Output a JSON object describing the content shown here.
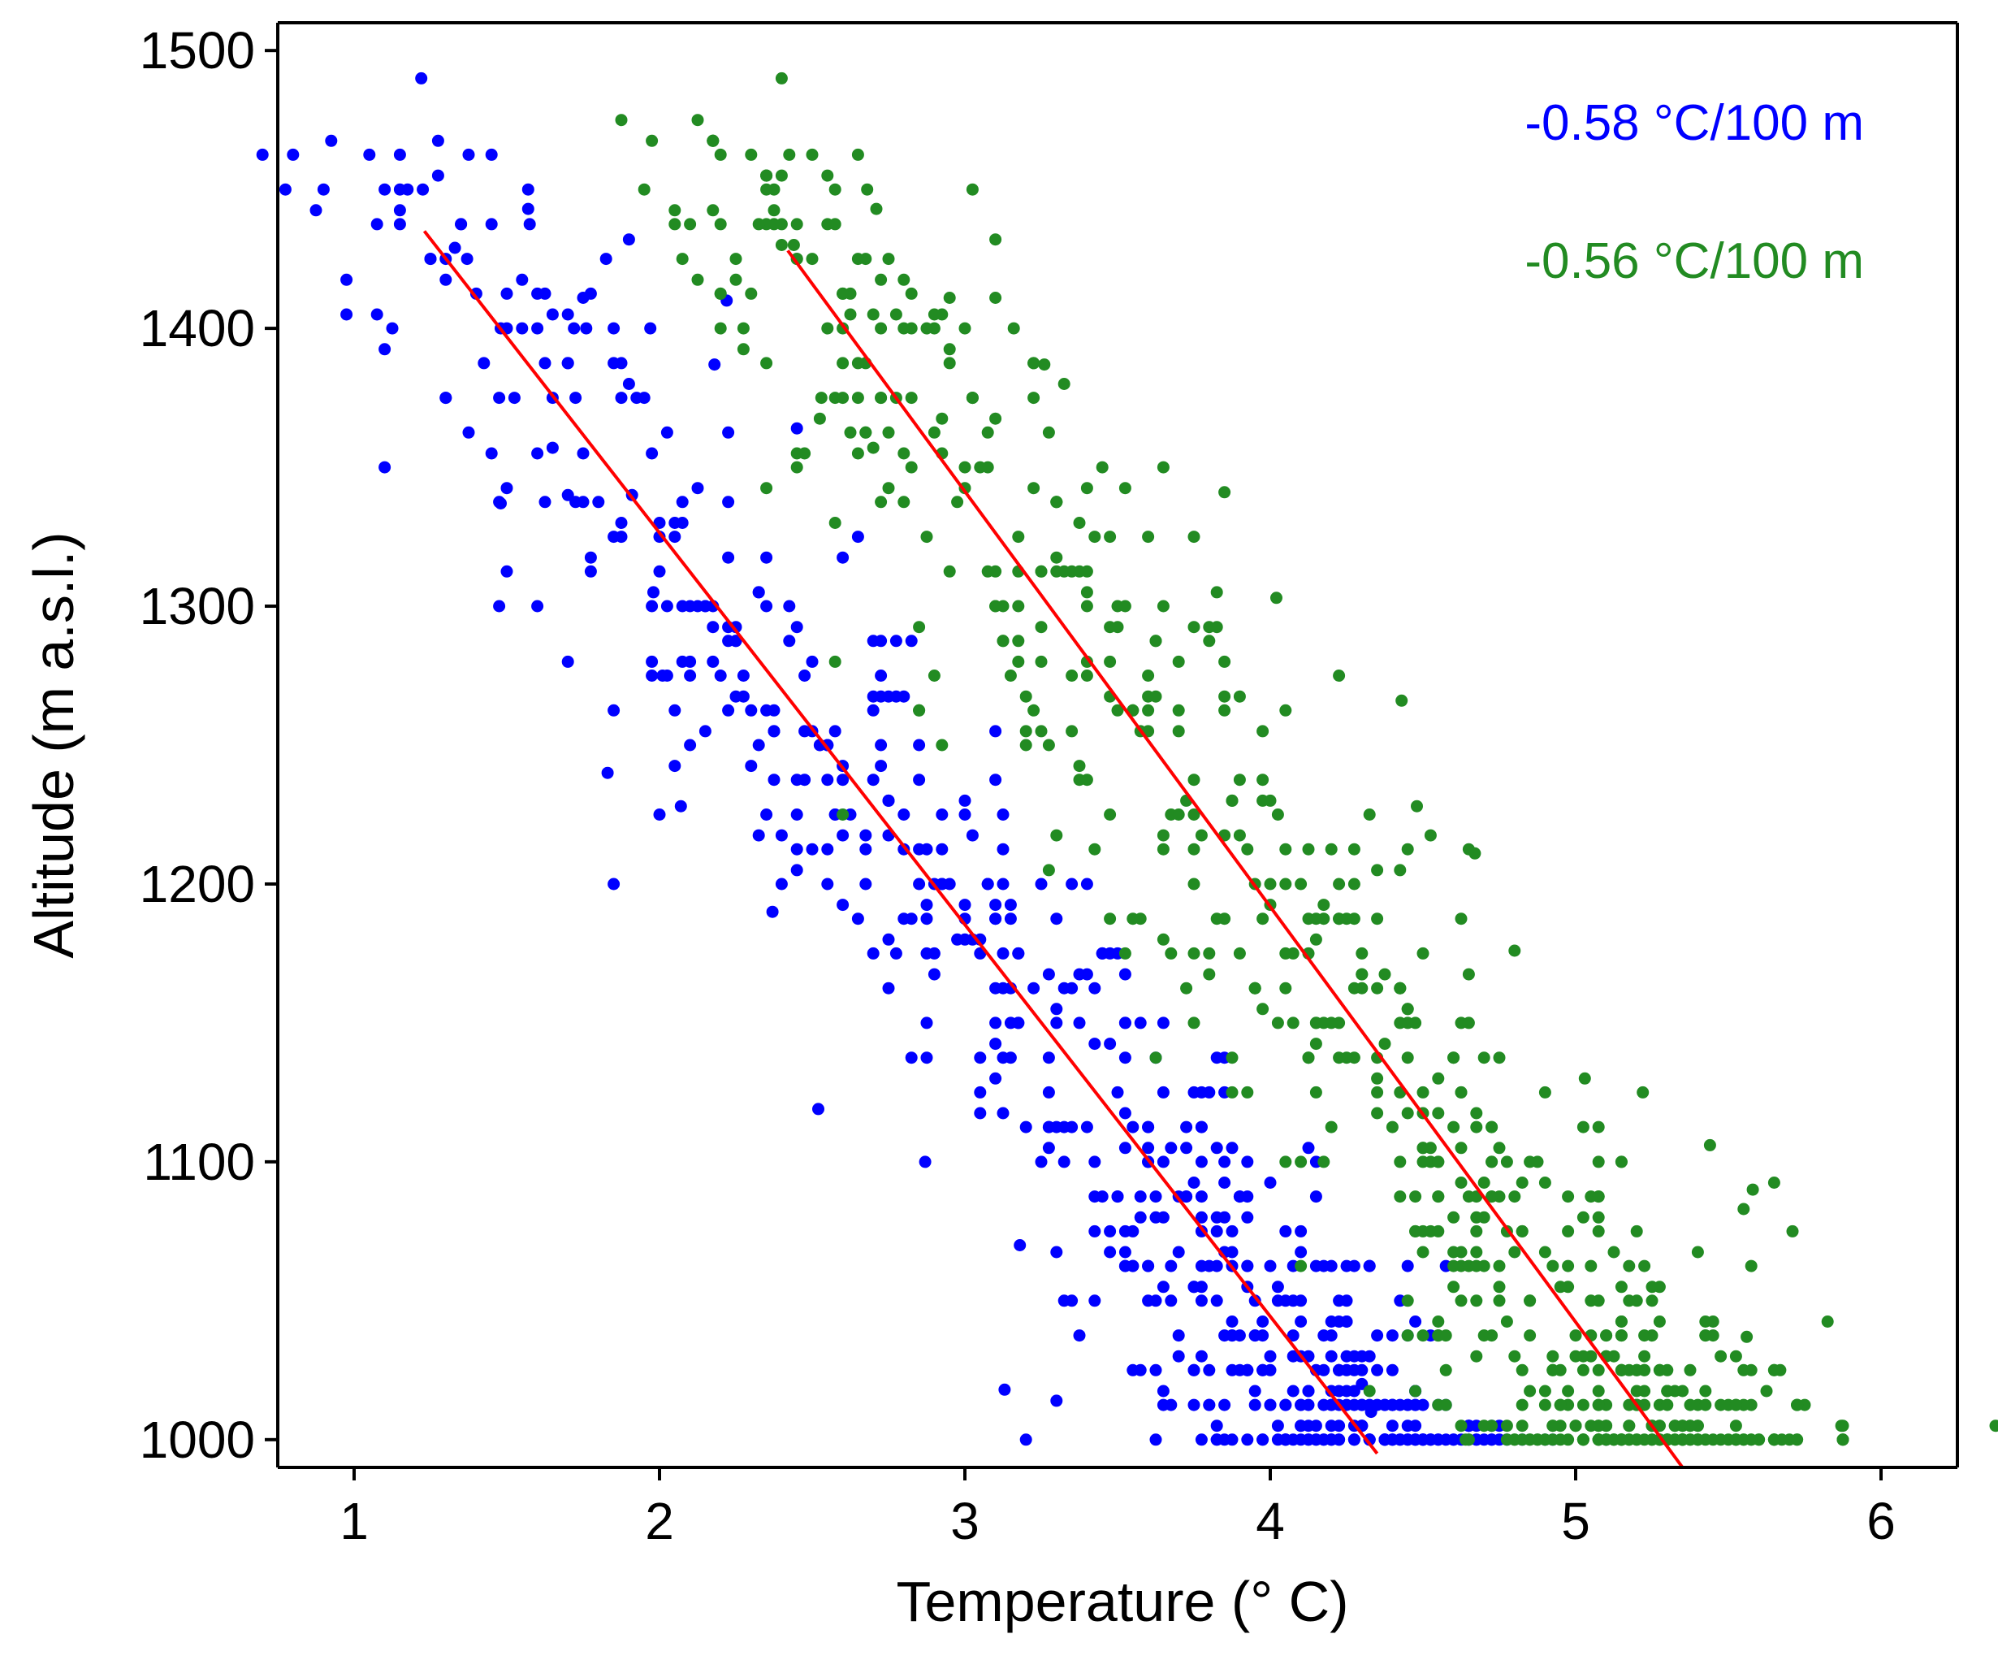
{
  "chart_data": {
    "type": "scatter",
    "title": "",
    "xlabel": "Temperature (° C)",
    "ylabel": "Altitude (m a.s.l.)",
    "xlim": [
      0.75,
      6.25
    ],
    "ylim": [
      990,
      1510
    ],
    "x_ticks": [
      1,
      2,
      3,
      4,
      5,
      6
    ],
    "x_tick_labels": [
      "1",
      "2",
      "3",
      "4",
      "5",
      "6"
    ],
    "y_ticks": [
      1000,
      1100,
      1200,
      1300,
      1400,
      1500
    ],
    "y_tick_labels": [
      "1000",
      "1100",
      "1200",
      "1300",
      "1400",
      "1500"
    ],
    "grid": false,
    "legend": "none",
    "series": [
      {
        "name": "blue",
        "color": "#0000ff",
        "annotation": "-0.58 °C/100 m",
        "trend": {
          "x": [
            1.23,
            4.35
          ],
          "y": [
            1435,
            995
          ]
        },
        "n_points": 650,
        "point_spread": {
          "temp_sd": 0.28,
          "alt_range": [
            1000,
            1490
          ]
        },
        "points": [
          [
            1.22,
            1490
          ],
          [
            1.57,
            1450
          ],
          [
            1.57,
            1443
          ],
          [
            1.25,
            1425
          ],
          [
            1.33,
            1429
          ],
          [
            1.37,
            1425
          ],
          [
            1.3,
            1375
          ],
          [
            1.48,
            1400
          ],
          [
            1.6,
            1400
          ],
          [
            1.75,
            1411
          ],
          [
            1.72,
            1400
          ],
          [
            1.76,
            1400
          ],
          [
            1.9,
            1432
          ],
          [
            1.97,
            1400
          ],
          [
            1.48,
            1337
          ],
          [
            1.65,
            1357
          ],
          [
            1.7,
            1340
          ],
          [
            1.85,
            1325
          ],
          [
            1.91,
            1340
          ],
          [
            1.98,
            1305
          ],
          [
            2.01,
            1275
          ],
          [
            1.83,
            1240
          ],
          [
            2.07,
            1228
          ],
          [
            2.22,
            1410
          ],
          [
            2.18,
            1387
          ],
          [
            2.45,
            1364
          ],
          [
            2.37,
            1190
          ],
          [
            2.52,
            1119
          ],
          [
            2.87,
            1100
          ],
          [
            3.18,
            1070
          ],
          [
            3.2,
            1000
          ],
          [
            4.33,
            1010
          ],
          [
            4.5,
            1000
          ],
          [
            4.3,
            1020
          ],
          [
            3.13,
            1018
          ],
          [
            3.3,
            1014
          ]
        ]
      },
      {
        "name": "green",
        "color": "#228b22",
        "annotation": "-0.56 °C/100 m",
        "trend": {
          "x": [
            2.42,
            5.35
          ],
          "y": [
            1428,
            990
          ]
        },
        "n_points": 700,
        "point_spread": {
          "temp_sd": 0.3,
          "alt_range": [
            1000,
            1490
          ]
        },
        "points": [
          [
            2.4,
            1490
          ],
          [
            2.68,
            1450
          ],
          [
            2.71,
            1443
          ],
          [
            2.44,
            1430
          ],
          [
            3.1,
            1432
          ],
          [
            2.6,
            1400
          ],
          [
            2.8,
            1400
          ],
          [
            2.9,
            1400
          ],
          [
            2.95,
            1411
          ],
          [
            3.1,
            1411
          ],
          [
            3.16,
            1400
          ],
          [
            2.53,
            1375
          ],
          [
            2.7,
            1357
          ],
          [
            3.26,
            1387
          ],
          [
            3.85,
            1341
          ],
          [
            4.02,
            1303
          ],
          [
            4.43,
            1266
          ],
          [
            4.67,
            1211
          ],
          [
            4.48,
            1228
          ],
          [
            4.8,
            1176
          ],
          [
            5.44,
            1106
          ],
          [
            5.58,
            1090
          ],
          [
            5.55,
            1083
          ],
          [
            5.71,
            1075
          ],
          [
            5.87,
            1005
          ],
          [
            5.67,
            1025
          ],
          [
            5.56,
            1037
          ],
          [
            5.4,
            1000
          ],
          [
            5.22,
            1125
          ],
          [
            5.03,
            1130
          ],
          [
            4.64,
            1000
          ],
          [
            4.8,
            1000
          ]
        ]
      }
    ]
  }
}
